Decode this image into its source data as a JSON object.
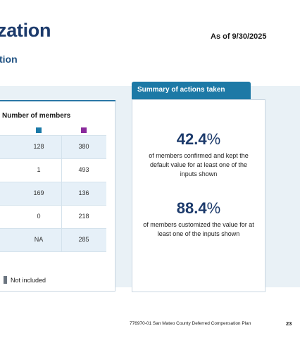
{
  "header": {
    "title": "zation",
    "as_of": "As of 9/30/2025",
    "subtitle": "tion"
  },
  "table": {
    "column_header": "Number of members",
    "legend_colors": {
      "series_1": "#1b7aa8",
      "series_2": "#8a2a9c"
    },
    "rows": [
      {
        "a": "128",
        "b": "380",
        "shaded": true
      },
      {
        "a": "1",
        "b": "493",
        "shaded": false
      },
      {
        "a": "169",
        "b": "136",
        "shaded": true
      },
      {
        "a": "0",
        "b": "218",
        "shaded": false
      },
      {
        "a": "NA",
        "b": "285",
        "shaded": true
      }
    ],
    "legend_not_included": "Not included"
  },
  "summary": {
    "tab_label": "Summary of actions taken",
    "stat1": {
      "value": "42.4",
      "unit": "%",
      "description": "of members confirmed and kept the default value for at least one of the inputs shown"
    },
    "stat2": {
      "value": "88.4",
      "unit": "%",
      "description": "of members customized the value for at least one of the inputs shown"
    }
  },
  "footer": {
    "text": "776970-01 San Mateo County Deferred Compensation Plan",
    "page_number": "23"
  }
}
